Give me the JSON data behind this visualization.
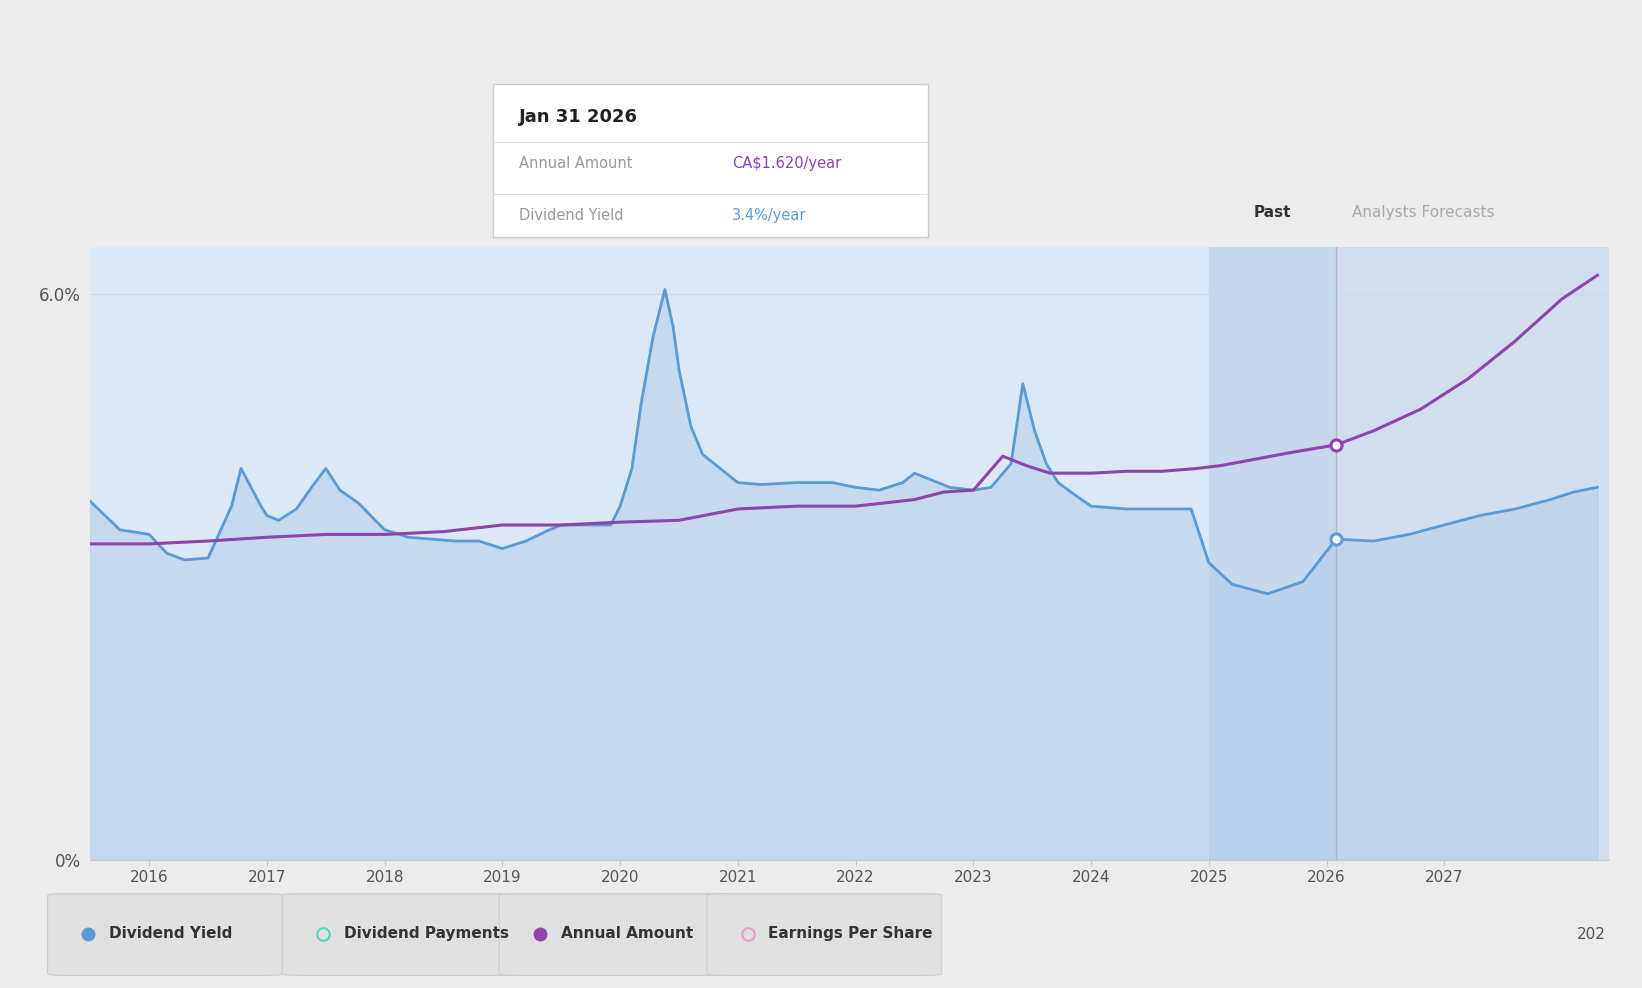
{
  "bg_color": "#ebebeb",
  "plot_bg_color": "#dce8f5",
  "grid_color": "#c8d8e8",
  "past_label": "Past",
  "forecast_label": "Analysts Forecasts",
  "division_year": 2026.08,
  "past_start_year": 2025.0,
  "ylim": [
    0.0,
    6.5
  ],
  "xlim": [
    2015.5,
    2028.4
  ],
  "xticks": [
    2016,
    2017,
    2018,
    2019,
    2020,
    2021,
    2022,
    2023,
    2024,
    2025,
    2026,
    2027
  ],
  "div_yield_color": "#5b9bd5",
  "div_yield_fill_alpha": 0.45,
  "div_yield_fill_color": "#adc8e8",
  "annual_amount_color": "#8e44ad",
  "tooltip_title": "Jan 31 2026",
  "tooltip_annual_label": "Annual Amount",
  "tooltip_annual_amount": "CA$1.620/year",
  "tooltip_yield_label": "Dividend Yield",
  "tooltip_dividend_yield": "3.4%/year",
  "tooltip_amount_color": "#8e44ad",
  "tooltip_yield_color": "#5b9bd5",
  "marker_year": 2026.08,
  "div_yield_at_marker": 3.4,
  "annual_amount_at_marker": 4.4,
  "div_yield_data": {
    "x": [
      2015.5,
      2015.75,
      2016.0,
      2016.15,
      2016.3,
      2016.5,
      2016.7,
      2016.78,
      2016.95,
      2017.0,
      2017.1,
      2017.25,
      2017.38,
      2017.5,
      2017.62,
      2017.78,
      2017.92,
      2018.0,
      2018.2,
      2018.4,
      2018.6,
      2018.8,
      2019.0,
      2019.2,
      2019.4,
      2019.5,
      2019.65,
      2019.78,
      2019.92,
      2020.0,
      2020.1,
      2020.18,
      2020.28,
      2020.38,
      2020.45,
      2020.5,
      2020.6,
      2020.7,
      2020.85,
      2021.0,
      2021.2,
      2021.5,
      2021.8,
      2022.0,
      2022.2,
      2022.4,
      2022.5,
      2022.6,
      2022.8,
      2023.0,
      2023.15,
      2023.32,
      2023.42,
      2023.52,
      2023.62,
      2023.72,
      2023.85,
      2024.0,
      2024.3,
      2024.6,
      2024.85,
      2025.0,
      2025.2,
      2025.5,
      2025.8,
      2026.08,
      2026.4,
      2026.7,
      2027.0,
      2027.3,
      2027.6,
      2027.9,
      2028.1,
      2028.3
    ],
    "y": [
      3.8,
      3.5,
      3.45,
      3.25,
      3.18,
      3.2,
      3.75,
      4.15,
      3.75,
      3.65,
      3.6,
      3.72,
      3.95,
      4.15,
      3.92,
      3.78,
      3.6,
      3.5,
      3.42,
      3.4,
      3.38,
      3.38,
      3.3,
      3.38,
      3.5,
      3.55,
      3.55,
      3.55,
      3.55,
      3.75,
      4.15,
      4.85,
      5.55,
      6.05,
      5.65,
      5.2,
      4.6,
      4.3,
      4.15,
      4.0,
      3.98,
      4.0,
      4.0,
      3.95,
      3.92,
      4.0,
      4.1,
      4.05,
      3.95,
      3.92,
      3.95,
      4.2,
      5.05,
      4.55,
      4.2,
      4.0,
      3.88,
      3.75,
      3.72,
      3.72,
      3.72,
      3.15,
      2.92,
      2.82,
      2.95,
      3.4,
      3.38,
      3.45,
      3.55,
      3.65,
      3.72,
      3.82,
      3.9,
      3.95
    ]
  },
  "annual_amount_data": {
    "x": [
      2015.5,
      2016.0,
      2016.5,
      2017.0,
      2017.5,
      2018.0,
      2018.5,
      2019.0,
      2019.5,
      2020.0,
      2020.5,
      2021.0,
      2021.5,
      2022.0,
      2022.5,
      2022.75,
      2023.0,
      2023.25,
      2023.45,
      2023.65,
      2023.85,
      2024.0,
      2024.3,
      2024.6,
      2024.9,
      2025.1,
      2025.4,
      2025.7,
      2026.08,
      2026.4,
      2026.8,
      2027.2,
      2027.6,
      2028.0,
      2028.3
    ],
    "y": [
      3.35,
      3.35,
      3.38,
      3.42,
      3.45,
      3.45,
      3.48,
      3.55,
      3.55,
      3.58,
      3.6,
      3.72,
      3.75,
      3.75,
      3.82,
      3.9,
      3.92,
      4.28,
      4.18,
      4.1,
      4.1,
      4.1,
      4.12,
      4.12,
      4.15,
      4.18,
      4.25,
      4.32,
      4.4,
      4.55,
      4.78,
      5.1,
      5.5,
      5.95,
      6.2
    ]
  },
  "legend_items": [
    {
      "label": "Dividend Yield",
      "color": "#5b9bd5",
      "filled": true
    },
    {
      "label": "Dividend Payments",
      "color": "#4dd9c0",
      "filled": false
    },
    {
      "label": "Annual Amount",
      "color": "#8e44ad",
      "filled": true
    },
    {
      "label": "Earnings Per Share",
      "color": "#e8a0c8",
      "filled": false
    }
  ]
}
